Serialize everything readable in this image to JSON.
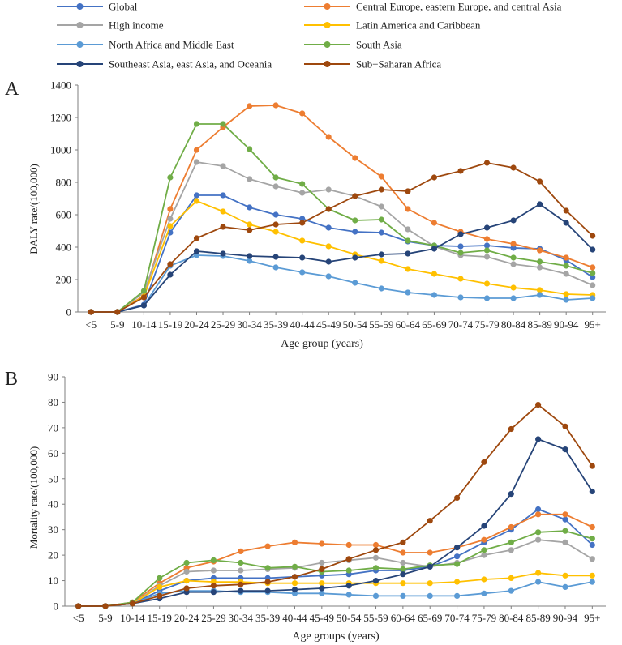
{
  "legend": {
    "entries": [
      {
        "name": "Global",
        "color": "#4472C4"
      },
      {
        "name": "Central Europe, eastern Europe, and central Asia",
        "color": "#ED7D31"
      },
      {
        "name": "High income",
        "color": "#A5A5A5"
      },
      {
        "name": "Latin America and Caribbean",
        "color": "#FFC000"
      },
      {
        "name": "North Africa and Middle East",
        "color": "#5B9BD5"
      },
      {
        "name": "South Asia",
        "color": "#70AD47"
      },
      {
        "name": "Southeast Asia, east Asia, and Oceania",
        "color": "#264478"
      },
      {
        "name": "Sub−Saharan Africa",
        "color": "#9E480E"
      }
    ]
  },
  "chart_data": [
    {
      "type": "line",
      "panel_label": "A",
      "title": "",
      "xlabel": "Age group (years)",
      "ylabel": "DALY rate/(100,000)",
      "ylim": [
        0,
        1400
      ],
      "yticks": [
        0,
        200,
        400,
        600,
        800,
        1000,
        1200,
        1400
      ],
      "grid": false,
      "categories": [
        "<5",
        "5-9",
        "10-14",
        "15-19",
        "20-24",
        "25-29",
        "30-34",
        "35-39",
        "40-44",
        "45-49",
        "50-54",
        "55-59",
        "60-64",
        "65-69",
        "70-74",
        "75-79",
        "80-84",
        "85-89",
        "90-94",
        "95+"
      ],
      "series": [
        {
          "name": "Global",
          "values": [
            0,
            0,
            45,
            490,
            720,
            720,
            645,
            600,
            575,
            520,
            495,
            490,
            435,
            410,
            405,
            410,
            395,
            390,
            320,
            215
          ]
        },
        {
          "name": "Central Europe, eastern Europe, and central Asia",
          "values": [
            0,
            0,
            100,
            635,
            1000,
            1140,
            1270,
            1275,
            1225,
            1080,
            950,
            835,
            635,
            550,
            495,
            450,
            420,
            380,
            335,
            275
          ]
        },
        {
          "name": "High income",
          "values": [
            0,
            0,
            120,
            575,
            925,
            900,
            820,
            775,
            735,
            755,
            715,
            650,
            510,
            405,
            350,
            340,
            295,
            275,
            235,
            165
          ]
        },
        {
          "name": "Latin America and Caribbean",
          "values": [
            0,
            0,
            95,
            530,
            685,
            620,
            540,
            495,
            440,
            405,
            355,
            315,
            265,
            235,
            205,
            175,
            150,
            135,
            110,
            105
          ]
        },
        {
          "name": "North Africa and Middle East",
          "values": [
            0,
            0,
            40,
            285,
            350,
            345,
            315,
            275,
            245,
            220,
            180,
            145,
            120,
            105,
            90,
            85,
            85,
            105,
            75,
            85
          ]
        },
        {
          "name": "South Asia",
          "values": [
            0,
            0,
            130,
            830,
            1160,
            1160,
            1005,
            830,
            790,
            635,
            565,
            570,
            440,
            410,
            365,
            380,
            335,
            310,
            285,
            240
          ]
        },
        {
          "name": "Southeast Asia, east Asia, and Oceania",
          "values": [
            0,
            0,
            40,
            230,
            375,
            360,
            345,
            340,
            335,
            310,
            335,
            355,
            360,
            390,
            480,
            520,
            565,
            665,
            550,
            385
          ]
        },
        {
          "name": "Sub−Saharan Africa",
          "values": [
            0,
            0,
            90,
            295,
            455,
            525,
            505,
            540,
            550,
            635,
            715,
            755,
            745,
            830,
            870,
            920,
            890,
            805,
            625,
            470
          ]
        }
      ]
    },
    {
      "type": "line",
      "panel_label": "B",
      "title": "",
      "xlabel": "Age groups (years)",
      "ylabel": "Mortality rate/(100,000)",
      "ylim": [
        0,
        90
      ],
      "yticks": [
        0,
        10,
        20,
        30,
        40,
        50,
        60,
        70,
        80,
        90
      ],
      "grid": false,
      "categories": [
        "<5",
        "5-9",
        "10-14",
        "15-19",
        "20-24",
        "25-29",
        "30-34",
        "35-39",
        "40-44",
        "45-49",
        "50-54",
        "55-59",
        "60-64",
        "65-69",
        "70-74",
        "75-79",
        "80-84",
        "85-89",
        "90-94",
        "95+"
      ],
      "series": [
        {
          "name": "Global",
          "values": [
            0,
            0,
            1,
            6,
            10,
            11,
            11,
            11,
            11.5,
            12,
            12.5,
            14,
            14,
            15.5,
            19.5,
            25,
            30,
            38,
            34,
            24
          ]
        },
        {
          "name": "Central Europe, eastern Europe, and central Asia",
          "values": [
            0,
            0,
            1.5,
            9,
            15,
            17.5,
            21.5,
            23.5,
            25,
            24.5,
            24,
            24,
            21,
            21,
            23,
            26,
            31,
            36,
            36,
            31
          ]
        },
        {
          "name": "High income",
          "values": [
            0,
            0,
            1,
            8,
            13.5,
            14,
            14,
            14.5,
            15,
            17,
            18,
            19,
            17,
            15.5,
            17,
            20,
            22,
            26,
            25,
            18.5
          ]
        },
        {
          "name": "Latin America and Caribbean",
          "values": [
            0,
            0,
            1,
            7.5,
            10,
            9.5,
            9.5,
            9,
            9,
            9,
            9,
            9,
            9,
            9,
            9.5,
            10.5,
            11,
            13,
            12,
            12
          ]
        },
        {
          "name": "North Africa and Middle East",
          "values": [
            0,
            0,
            1,
            5,
            6,
            6,
            5.5,
            5.5,
            5,
            5,
            4.5,
            4,
            4,
            4,
            4,
            5,
            6,
            9.5,
            7.5,
            9.5
          ]
        },
        {
          "name": "South Asia",
          "values": [
            0,
            0,
            1.5,
            11,
            17,
            18,
            17,
            15,
            15.5,
            13.5,
            14,
            15,
            14.5,
            16,
            16.5,
            22,
            25,
            29,
            29.5,
            26.5
          ]
        },
        {
          "name": "Southeast Asia, east Asia, and Oceania",
          "values": [
            0,
            0,
            1,
            3,
            5.5,
            5.5,
            6,
            6,
            6.5,
            7,
            8,
            10,
            12.5,
            15.5,
            23,
            31.5,
            44,
            65.5,
            61.5,
            45
          ]
        },
        {
          "name": "Sub−Saharan Africa",
          "values": [
            0,
            0,
            1,
            4,
            7,
            8,
            8.5,
            9.5,
            11.5,
            14.5,
            18.5,
            22,
            25,
            33.5,
            42.5,
            56.5,
            69.5,
            79,
            70.5,
            55
          ]
        }
      ]
    }
  ]
}
